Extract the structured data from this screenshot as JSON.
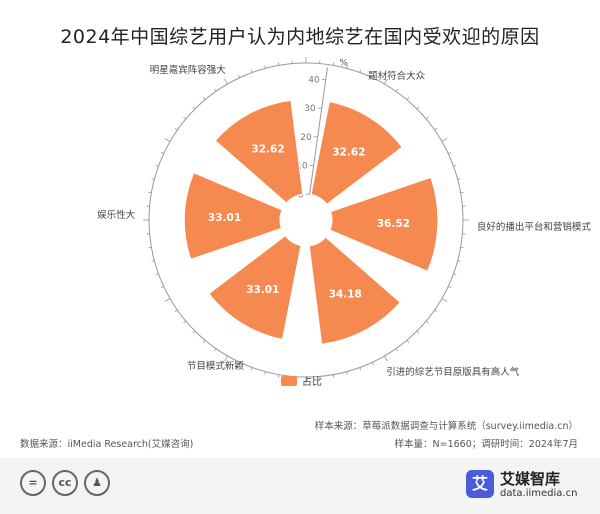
{
  "title": "2024年中国综艺用户认为内地综艺在国内受欢迎的原因",
  "chart_data": {
    "type": "bar",
    "polar": true,
    "categories": [
      "题材符合大众",
      "良好的播出平台和营销模式",
      "引进的综艺节目原版具有高人气",
      "节目模式新颖",
      "娱乐性大",
      "明星嘉宾阵容强大"
    ],
    "series": [
      {
        "name": "占比",
        "values": [
          32.62,
          36.52,
          34.18,
          33.01,
          33.01,
          32.62
        ]
      }
    ],
    "value_labels": [
      "32.62",
      "36.52",
      "34.18",
      "33.01",
      "33.01",
      "32.62"
    ],
    "radial_axis": {
      "min": 0,
      "max": 40,
      "ticks": [
        "0",
        "10",
        "20",
        "30",
        "40"
      ],
      "unit": "%"
    },
    "colors": {
      "bar": "#f5894f",
      "bar_stroke": "#ffffff",
      "axis": "#999999",
      "label": "#444444",
      "data_label": "#ffffff"
    },
    "legend": {
      "position": "bottom",
      "label": "占比"
    }
  },
  "sources": {
    "sample_source": "样本来源：草莓派数据调查与计算系统（survey.iimedia.cn）",
    "data_source": "数据来源：iiMedia Research(艾媒咨询)",
    "sample_info": "样本量：N=1660；调研时间：2024年7月"
  },
  "footer": {
    "cc_icons": [
      "equals-icon",
      "cc-icon",
      "person-icon"
    ],
    "brand_name": "艾媒智库",
    "brand_url": "data.iimedia.cn",
    "brand_logo": "艾"
  }
}
